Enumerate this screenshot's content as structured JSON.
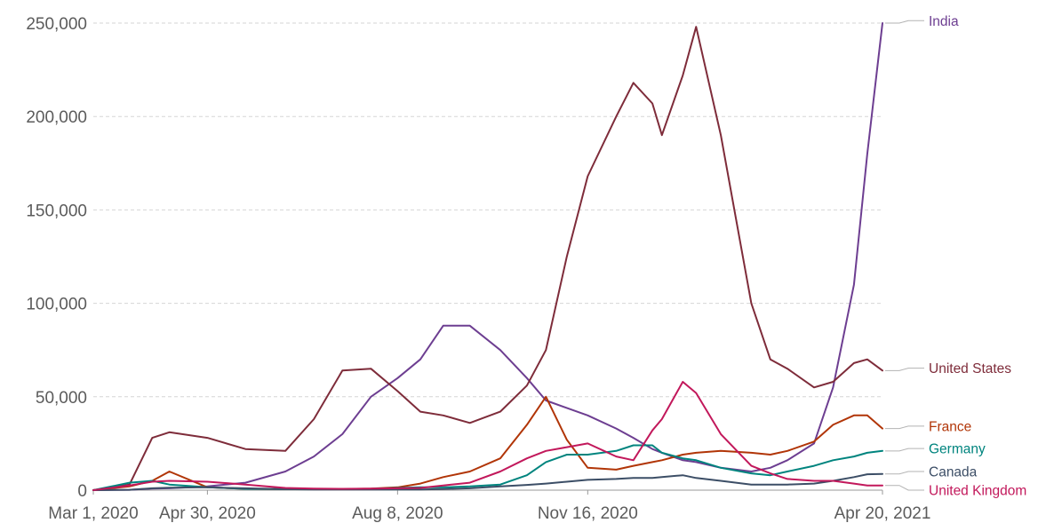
{
  "chart_data": {
    "type": "line",
    "x_dates": [
      "2020-03-01",
      "2020-03-20",
      "2020-04-01",
      "2020-04-10",
      "2020-04-30",
      "2020-05-20",
      "2020-06-10",
      "2020-06-25",
      "2020-07-10",
      "2020-07-25",
      "2020-08-08",
      "2020-08-20",
      "2020-09-01",
      "2020-09-15",
      "2020-10-01",
      "2020-10-15",
      "2020-10-25",
      "2020-11-05",
      "2020-11-16",
      "2020-12-01",
      "2020-12-10",
      "2020-12-20",
      "2020-12-25",
      "2021-01-05",
      "2021-01-12",
      "2021-01-25",
      "2021-02-10",
      "2021-02-20",
      "2021-03-01",
      "2021-03-15",
      "2021-03-25",
      "2021-04-05",
      "2021-04-12",
      "2021-04-20"
    ],
    "x_ticks": [
      "Mar 1, 2020",
      "Apr 30, 2020",
      "Aug 8, 2020",
      "Nov 16, 2020",
      "Apr 20, 2021"
    ],
    "y_ticks": [
      "0",
      "50,000",
      "100,000",
      "150,000",
      "200,000",
      "250,000"
    ],
    "ylim": [
      0,
      250000
    ],
    "grid": true,
    "series": [
      {
        "name": "India",
        "color": "#6d3e91",
        "values": [
          0,
          200,
          800,
          1000,
          2000,
          4000,
          10000,
          18000,
          30000,
          50000,
          60000,
          70000,
          88000,
          88000,
          75000,
          60000,
          48000,
          44000,
          40000,
          33000,
          28000,
          22000,
          20000,
          16000,
          15000,
          12000,
          10000,
          12000,
          16000,
          25000,
          55000,
          110000,
          180000,
          250000
        ]
      },
      {
        "name": "United States",
        "color": "#7e2c3a",
        "values": [
          0,
          3000,
          28000,
          31000,
          28000,
          22000,
          21000,
          38000,
          64000,
          65000,
          53000,
          42000,
          40000,
          36000,
          42000,
          56000,
          75000,
          125000,
          168000,
          200000,
          218000,
          207000,
          190000,
          222000,
          248000,
          190000,
          100000,
          70000,
          65000,
          55000,
          58000,
          68000,
          70000,
          64000
        ]
      },
      {
        "name": "France",
        "color": "#b13507",
        "values": [
          0,
          2000,
          5000,
          10000,
          1500,
          700,
          500,
          500,
          600,
          800,
          1500,
          3500,
          7000,
          10000,
          17000,
          35000,
          50000,
          27000,
          12000,
          11000,
          13000,
          15000,
          16000,
          19000,
          20000,
          21000,
          20000,
          19000,
          21000,
          26000,
          35000,
          40000,
          40000,
          33000
        ]
      },
      {
        "name": "Germany",
        "color": "#00847e",
        "values": [
          0,
          4000,
          5000,
          3000,
          1500,
          700,
          500,
          500,
          500,
          700,
          1200,
          1500,
          1500,
          2000,
          3000,
          8000,
          15000,
          19000,
          19000,
          21000,
          24000,
          24000,
          20000,
          17000,
          16000,
          12000,
          9000,
          8000,
          10000,
          13000,
          16000,
          18000,
          20000,
          21000
        ]
      },
      {
        "name": "Canada",
        "color": "#3c4e66",
        "values": [
          0,
          200,
          1000,
          1300,
          1500,
          1000,
          500,
          400,
          400,
          400,
          400,
          400,
          600,
          1000,
          2000,
          2800,
          3500,
          4500,
          5500,
          6000,
          6500,
          6500,
          7000,
          8000,
          6500,
          5000,
          3000,
          3000,
          3000,
          3500,
          5000,
          7000,
          8500,
          8700
        ]
      },
      {
        "name": "United Kingdom",
        "color": "#c2185b",
        "values": [
          0,
          2500,
          4500,
          5000,
          4500,
          3000,
          1200,
          800,
          700,
          800,
          1000,
          1200,
          2500,
          4000,
          10000,
          17000,
          21000,
          23000,
          25000,
          18000,
          16000,
          32000,
          38000,
          58000,
          52000,
          30000,
          13000,
          9000,
          6000,
          5000,
          5000,
          3500,
          2500,
          2500
        ]
      }
    ]
  }
}
